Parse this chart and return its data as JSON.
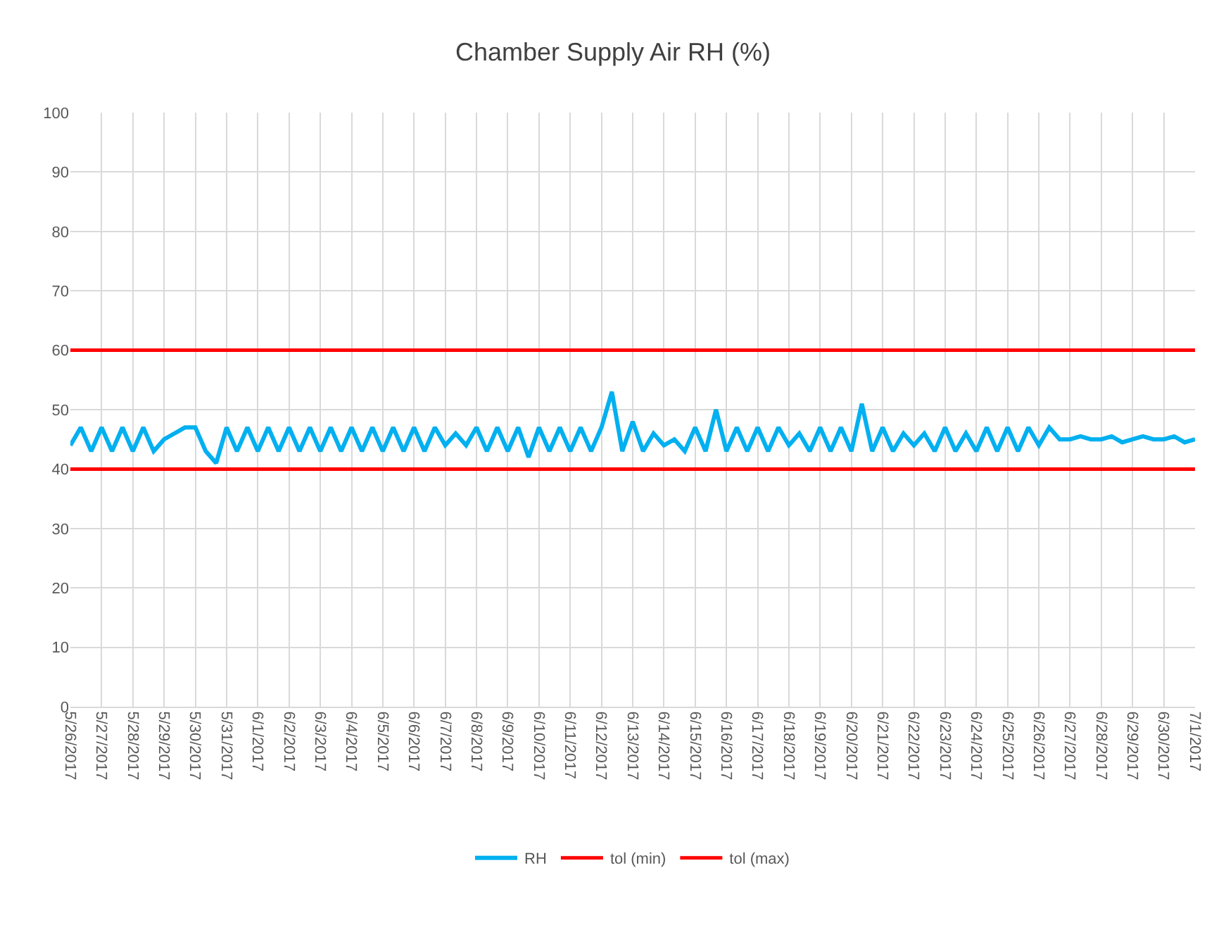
{
  "chart_data": {
    "type": "line",
    "title": "Chamber Supply Air RH (%)",
    "xlim": [
      "2017-05-26",
      "2017-07-01"
    ],
    "xticks": [
      {
        "value": "2017-05-26",
        "label": "5/26/2017"
      },
      {
        "value": "2017-05-27",
        "label": "5/27/2017"
      },
      {
        "value": "2017-05-28",
        "label": "5/28/2017"
      },
      {
        "value": "2017-05-29",
        "label": "5/29/2017"
      },
      {
        "value": "2017-05-30",
        "label": "5/30/2017"
      },
      {
        "value": "2017-05-31",
        "label": "5/31/2017"
      },
      {
        "value": "2017-06-01",
        "label": "6/1/2017"
      },
      {
        "value": "2017-06-02",
        "label": "6/2/2017"
      },
      {
        "value": "2017-06-03",
        "label": "6/3/2017"
      },
      {
        "value": "2017-06-04",
        "label": "6/4/2017"
      },
      {
        "value": "2017-06-05",
        "label": "6/5/2017"
      },
      {
        "value": "2017-06-06",
        "label": "6/6/2017"
      },
      {
        "value": "2017-06-07",
        "label": "6/7/2017"
      },
      {
        "value": "2017-06-08",
        "label": "6/8/2017"
      },
      {
        "value": "2017-06-09",
        "label": "6/9/2017"
      },
      {
        "value": "2017-06-10",
        "label": "6/10/2017"
      },
      {
        "value": "2017-06-11",
        "label": "6/11/2017"
      },
      {
        "value": "2017-06-12",
        "label": "6/12/2017"
      },
      {
        "value": "2017-06-13",
        "label": "6/13/2017"
      },
      {
        "value": "2017-06-14",
        "label": "6/14/2017"
      },
      {
        "value": "2017-06-15",
        "label": "6/15/2017"
      },
      {
        "value": "2017-06-16",
        "label": "6/16/2017"
      },
      {
        "value": "2017-06-17",
        "label": "6/17/2017"
      },
      {
        "value": "2017-06-18",
        "label": "6/18/2017"
      },
      {
        "value": "2017-06-19",
        "label": "6/19/2017"
      },
      {
        "value": "2017-06-20",
        "label": "6/20/2017"
      },
      {
        "value": "2017-06-21",
        "label": "6/21/2017"
      },
      {
        "value": "2017-06-22",
        "label": "6/22/2017"
      },
      {
        "value": "2017-06-23",
        "label": "6/23/2017"
      },
      {
        "value": "2017-06-24",
        "label": "6/24/2017"
      },
      {
        "value": "2017-06-25",
        "label": "6/25/2017"
      },
      {
        "value": "2017-06-26",
        "label": "6/26/2017"
      },
      {
        "value": "2017-06-27",
        "label": "6/27/2017"
      },
      {
        "value": "2017-06-28",
        "label": "6/28/2017"
      },
      {
        "value": "2017-06-29",
        "label": "6/29/2017"
      },
      {
        "value": "2017-06-30",
        "label": "6/30/2017"
      },
      {
        "value": "2017-07-01",
        "label": "7/1/2017"
      }
    ],
    "ylim": [
      0,
      100
    ],
    "yticks": [
      0,
      10,
      20,
      30,
      40,
      50,
      60,
      70,
      80,
      90,
      100
    ],
    "grid": true,
    "legend": "bottom",
    "marker": "none",
    "line_style": "solid",
    "series": [
      {
        "name": "RH",
        "color": "#00b0f0",
        "x": [
          "2017-05-26T00:00",
          "2017-05-26T08:00",
          "2017-05-26T16:00",
          "2017-05-27T00:00",
          "2017-05-27T08:00",
          "2017-05-27T16:00",
          "2017-05-28T00:00",
          "2017-05-28T08:00",
          "2017-05-28T16:00",
          "2017-05-29T00:00",
          "2017-05-29T08:00",
          "2017-05-29T16:00",
          "2017-05-30T00:00",
          "2017-05-30T08:00",
          "2017-05-30T16:00",
          "2017-05-31T00:00",
          "2017-05-31T08:00",
          "2017-05-31T16:00",
          "2017-06-01T00:00",
          "2017-06-01T08:00",
          "2017-06-01T16:00",
          "2017-06-02T00:00",
          "2017-06-02T08:00",
          "2017-06-02T16:00",
          "2017-06-03T00:00",
          "2017-06-03T08:00",
          "2017-06-03T16:00",
          "2017-06-04T00:00",
          "2017-06-04T08:00",
          "2017-06-04T16:00",
          "2017-06-05T00:00",
          "2017-06-05T08:00",
          "2017-06-05T16:00",
          "2017-06-06T00:00",
          "2017-06-06T08:00",
          "2017-06-06T16:00",
          "2017-06-07T00:00",
          "2017-06-07T08:00",
          "2017-06-07T16:00",
          "2017-06-08T00:00",
          "2017-06-08T08:00",
          "2017-06-08T16:00",
          "2017-06-09T00:00",
          "2017-06-09T08:00",
          "2017-06-09T16:00",
          "2017-06-10T00:00",
          "2017-06-10T08:00",
          "2017-06-10T16:00",
          "2017-06-11T00:00",
          "2017-06-11T08:00",
          "2017-06-11T16:00",
          "2017-06-12T00:00",
          "2017-06-12T08:00",
          "2017-06-12T16:00",
          "2017-06-13T00:00",
          "2017-06-13T08:00",
          "2017-06-13T16:00",
          "2017-06-14T00:00",
          "2017-06-14T08:00",
          "2017-06-14T16:00",
          "2017-06-15T00:00",
          "2017-06-15T08:00",
          "2017-06-15T16:00",
          "2017-06-16T00:00",
          "2017-06-16T08:00",
          "2017-06-16T16:00",
          "2017-06-17T00:00",
          "2017-06-17T08:00",
          "2017-06-17T16:00",
          "2017-06-18T00:00",
          "2017-06-18T08:00",
          "2017-06-18T16:00",
          "2017-06-19T00:00",
          "2017-06-19T08:00",
          "2017-06-19T16:00",
          "2017-06-20T00:00",
          "2017-06-20T08:00",
          "2017-06-20T16:00",
          "2017-06-21T00:00",
          "2017-06-21T08:00",
          "2017-06-21T16:00",
          "2017-06-22T00:00",
          "2017-06-22T08:00",
          "2017-06-22T16:00",
          "2017-06-23T00:00",
          "2017-06-23T08:00",
          "2017-06-23T16:00",
          "2017-06-24T00:00",
          "2017-06-24T08:00",
          "2017-06-24T16:00",
          "2017-06-25T00:00",
          "2017-06-25T08:00",
          "2017-06-25T16:00",
          "2017-06-26T00:00",
          "2017-06-26T08:00",
          "2017-06-26T16:00",
          "2017-06-27T00:00",
          "2017-06-27T08:00",
          "2017-06-27T16:00",
          "2017-06-28T00:00",
          "2017-06-28T08:00",
          "2017-06-28T16:00",
          "2017-06-29T00:00",
          "2017-06-29T08:00",
          "2017-06-29T16:00",
          "2017-06-30T00:00",
          "2017-06-30T08:00",
          "2017-06-30T16:00",
          "2017-07-01T00:00"
        ],
        "values": [
          44,
          47,
          43,
          47,
          43,
          47,
          43,
          47,
          43,
          45,
          46,
          47,
          47,
          43,
          41,
          47,
          43,
          47,
          43,
          47,
          43,
          47,
          43,
          47,
          43,
          47,
          43,
          47,
          43,
          47,
          43,
          47,
          43,
          47,
          43,
          47,
          44,
          46,
          44,
          47,
          43,
          47,
          43,
          47,
          42,
          47,
          43,
          47,
          43,
          47,
          43,
          47,
          53,
          43,
          48,
          43,
          46,
          44,
          45,
          43,
          47,
          43,
          50,
          43,
          47,
          43,
          47,
          43,
          47,
          44,
          46,
          43,
          47,
          43,
          47,
          43,
          51,
          43,
          47,
          43,
          46,
          44,
          46,
          43,
          47,
          43,
          46,
          43,
          47,
          43,
          47,
          43,
          47,
          44,
          47,
          45,
          45,
          45.5,
          45,
          45,
          45.5,
          44.5,
          45,
          45.5,
          45,
          45,
          45.5,
          44.5,
          45
        ]
      },
      {
        "name": "tol (min)",
        "color": "#ff0000",
        "x": [
          "2017-05-26",
          "2017-07-01"
        ],
        "values": [
          40,
          40
        ]
      },
      {
        "name": "tol (max)",
        "color": "#ff0000",
        "x": [
          "2017-05-26",
          "2017-07-01"
        ],
        "values": [
          60,
          60
        ]
      }
    ]
  }
}
